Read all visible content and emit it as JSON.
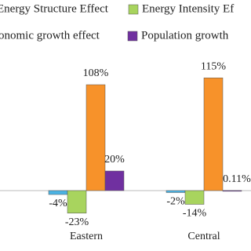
{
  "chart_data": {
    "type": "bar",
    "categories": [
      "Eastern",
      "Central"
    ],
    "series": [
      {
        "name": "Energy Structure Effect",
        "color": "#4bb3e3",
        "values": [
          -4,
          -2
        ],
        "value_labels": [
          "-4%",
          "-2%"
        ]
      },
      {
        "name": "Energy Intensity Ef",
        "color": "#a8d45e",
        "values": [
          -23,
          -14
        ],
        "value_labels": [
          "-23%",
          "-14%"
        ]
      },
      {
        "name": "onomic growth effect",
        "color": "#f7922a",
        "values": [
          108,
          115
        ],
        "value_labels": [
          "108%",
          "115%"
        ]
      },
      {
        "name": "Population growth",
        "color": "#7030a0",
        "values": [
          20,
          0.11
        ],
        "value_labels": [
          "20%",
          "0.11%"
        ]
      }
    ]
  }
}
